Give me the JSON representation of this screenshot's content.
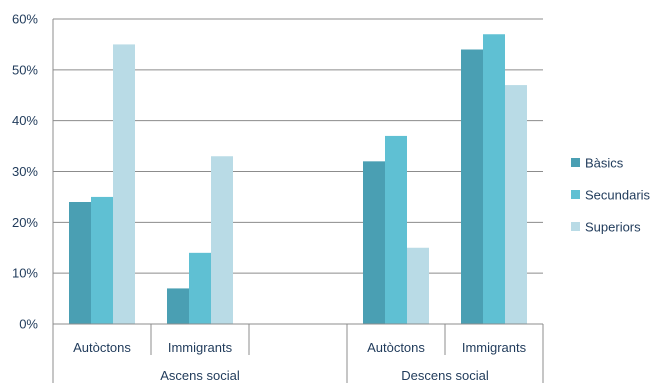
{
  "chart_data": {
    "type": "bar",
    "y_ticks": [
      "0%",
      "10%",
      "20%",
      "30%",
      "40%",
      "50%",
      "60%"
    ],
    "ylim": [
      0,
      60
    ],
    "grid": true,
    "legend_position": "right",
    "groups": [
      {
        "label": "Ascens social",
        "categories": [
          "Autòctons",
          "Immigrants",
          ""
        ]
      },
      {
        "label": "Descens social",
        "categories": [
          "Autòctons",
          "Immigrants"
        ]
      }
    ],
    "categories": [
      "Autòctons",
      "Immigrants",
      "",
      "Autòctons",
      "Immigrants"
    ],
    "series": [
      {
        "name": "Bàsics",
        "color": "#4a9fb3",
        "values": [
          24,
          7,
          null,
          32,
          54
        ]
      },
      {
        "name": "Secundaris",
        "color": "#5fc0d3",
        "values": [
          25,
          14,
          null,
          37,
          57
        ]
      },
      {
        "name": "Superiors",
        "color": "#b9dbe6",
        "values": [
          55,
          33,
          null,
          15,
          47
        ]
      }
    ]
  }
}
